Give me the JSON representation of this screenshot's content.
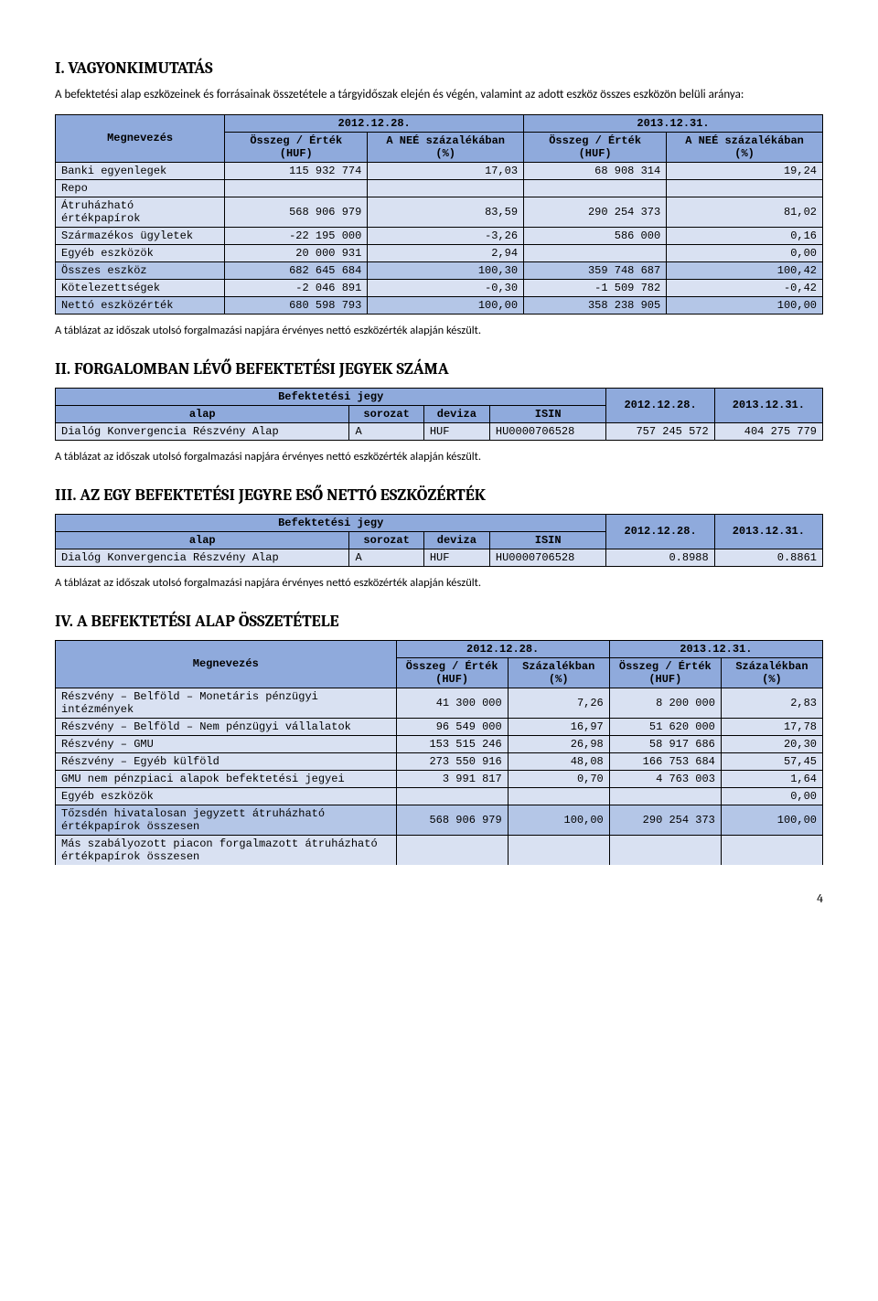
{
  "section1": {
    "heading": "I. VAGYONKIMUTATÁS",
    "intro": "A befektetési alap eszközeinek és forrásainak összetétele a tárgyidőszak elején és végén, valamint az adott eszköz összes eszközön belüli aránya:",
    "table": {
      "col_megnevezes": "Megnevezés",
      "group1": "2012.12.28.",
      "group2": "2013.12.31.",
      "col_ossz": "Összeg / Érték (HUF)",
      "col_pct": "A NEÉ százalékában (%)",
      "rows": [
        {
          "label": "Banki egyenlegek",
          "v1": "115 932 774",
          "p1": "17,03",
          "v2": "68 908 314",
          "p2": "19,24"
        },
        {
          "label": "Repo",
          "v1": "",
          "p1": "",
          "v2": "",
          "p2": ""
        },
        {
          "label": "Átruházható értékpapírok",
          "v1": "568 906 979",
          "p1": "83,59",
          "v2": "290 254 373",
          "p2": "81,02"
        },
        {
          "label": "Származékos ügyletek",
          "v1": "-22 195 000",
          "p1": "-3,26",
          "v2": "586 000",
          "p2": "0,16"
        },
        {
          "label": "Egyéb eszközök",
          "v1": "20 000 931",
          "p1": "2,94",
          "v2": "",
          "p2": "0,00"
        },
        {
          "label": "Összes eszköz",
          "v1": "682 645 684",
          "p1": "100,30",
          "v2": "359 748 687",
          "p2": "100,42",
          "hl": true
        },
        {
          "label": "Kötelezettségek",
          "v1": "-2 046 891",
          "p1": "-0,30",
          "v2": "-1 509 782",
          "p2": "-0,42"
        },
        {
          "label": "Nettó eszközérték",
          "v1": "680 598 793",
          "p1": "100,00",
          "v2": "358 238 905",
          "p2": "100,00",
          "hl": true
        }
      ]
    },
    "note": "A táblázat az időszak utolsó forgalmazási napjára érvényes nettó eszközérték alapján készült."
  },
  "section2": {
    "heading": "II. FORGALOMBAN LÉVŐ BEFEKTETÉSI JEGYEK SZÁMA",
    "table": {
      "col_jegy": "Befektetési jegy",
      "col_alap": "alap",
      "col_sorozat": "sorozat",
      "col_deviza": "deviza",
      "col_isin": "ISIN",
      "col_d1": "2012.12.28.",
      "col_d2": "2013.12.31.",
      "row": {
        "alap": "Dialóg Konvergencia Részvény Alap",
        "sorozat": "A",
        "deviza": "HUF",
        "isin": "HU0000706528",
        "v1": "757 245 572",
        "v2": "404 275 779"
      }
    },
    "note": "A táblázat az időszak utolsó forgalmazási napjára érvényes nettó eszközérték alapján készült."
  },
  "section3": {
    "heading": "III. AZ EGY BEFEKTETÉSI JEGYRE ESŐ NETTÓ ESZKÖZÉRTÉK",
    "table": {
      "col_jegy": "Befektetési jegy",
      "col_alap": "alap",
      "col_sorozat": "sorozat",
      "col_deviza": "deviza",
      "col_isin": "ISIN",
      "col_d1": "2012.12.28.",
      "col_d2": "2013.12.31.",
      "row": {
        "alap": "Dialóg Konvergencia Részvény Alap",
        "sorozat": "A",
        "deviza": "HUF",
        "isin": "HU0000706528",
        "v1": "0.8988",
        "v2": "0.8861"
      }
    },
    "note": "A táblázat az időszak utolsó forgalmazási napjára érvényes nettó eszközérték alapján készült."
  },
  "section4": {
    "heading": "IV. A BEFEKTETÉSI ALAP ÖSSZETÉTELE",
    "table": {
      "col_megnevezes": "Megnevezés",
      "group1": "2012.12.28.",
      "group2": "2013.12.31.",
      "col_ossz": "Összeg / Érték (HUF)",
      "col_pct": "Százalékban (%)",
      "rows": [
        {
          "label": "Részvény – Belföld – Monetáris pénzügyi intézmények",
          "v1": "41 300 000",
          "p1": "7,26",
          "v2": "8 200 000",
          "p2": "2,83"
        },
        {
          "label": "Részvény – Belföld – Nem pénzügyi vállalatok",
          "v1": "96 549 000",
          "p1": "16,97",
          "v2": "51 620 000",
          "p2": "17,78"
        },
        {
          "label": "Részvény – GMU",
          "v1": "153 515 246",
          "p1": "26,98",
          "v2": "58 917 686",
          "p2": "20,30"
        },
        {
          "label": "Részvény – Egyéb külföld",
          "v1": "273 550 916",
          "p1": "48,08",
          "v2": "166 753 684",
          "p2": "57,45"
        },
        {
          "label": "GMU nem pénzpiaci alapok befektetési jegyei",
          "v1": "3 991 817",
          "p1": "0,70",
          "v2": "4 763 003",
          "p2": "1,64"
        },
        {
          "label": "Egyéb eszközök",
          "v1": "",
          "p1": "",
          "v2": "",
          "p2": "0,00"
        },
        {
          "label": "Tőzsdén hivatalosan jegyzett átruházható értékpapírok összesen",
          "v1": "568 906 979",
          "p1": "100,00",
          "v2": "290 254 373",
          "p2": "100,00",
          "hl": true
        },
        {
          "label": "Más szabályozott piacon forgalmazott átruházható értékpapírok összesen",
          "v1": "",
          "p1": "",
          "v2": "",
          "p2": "",
          "last": true
        }
      ]
    }
  },
  "page_number": "4"
}
